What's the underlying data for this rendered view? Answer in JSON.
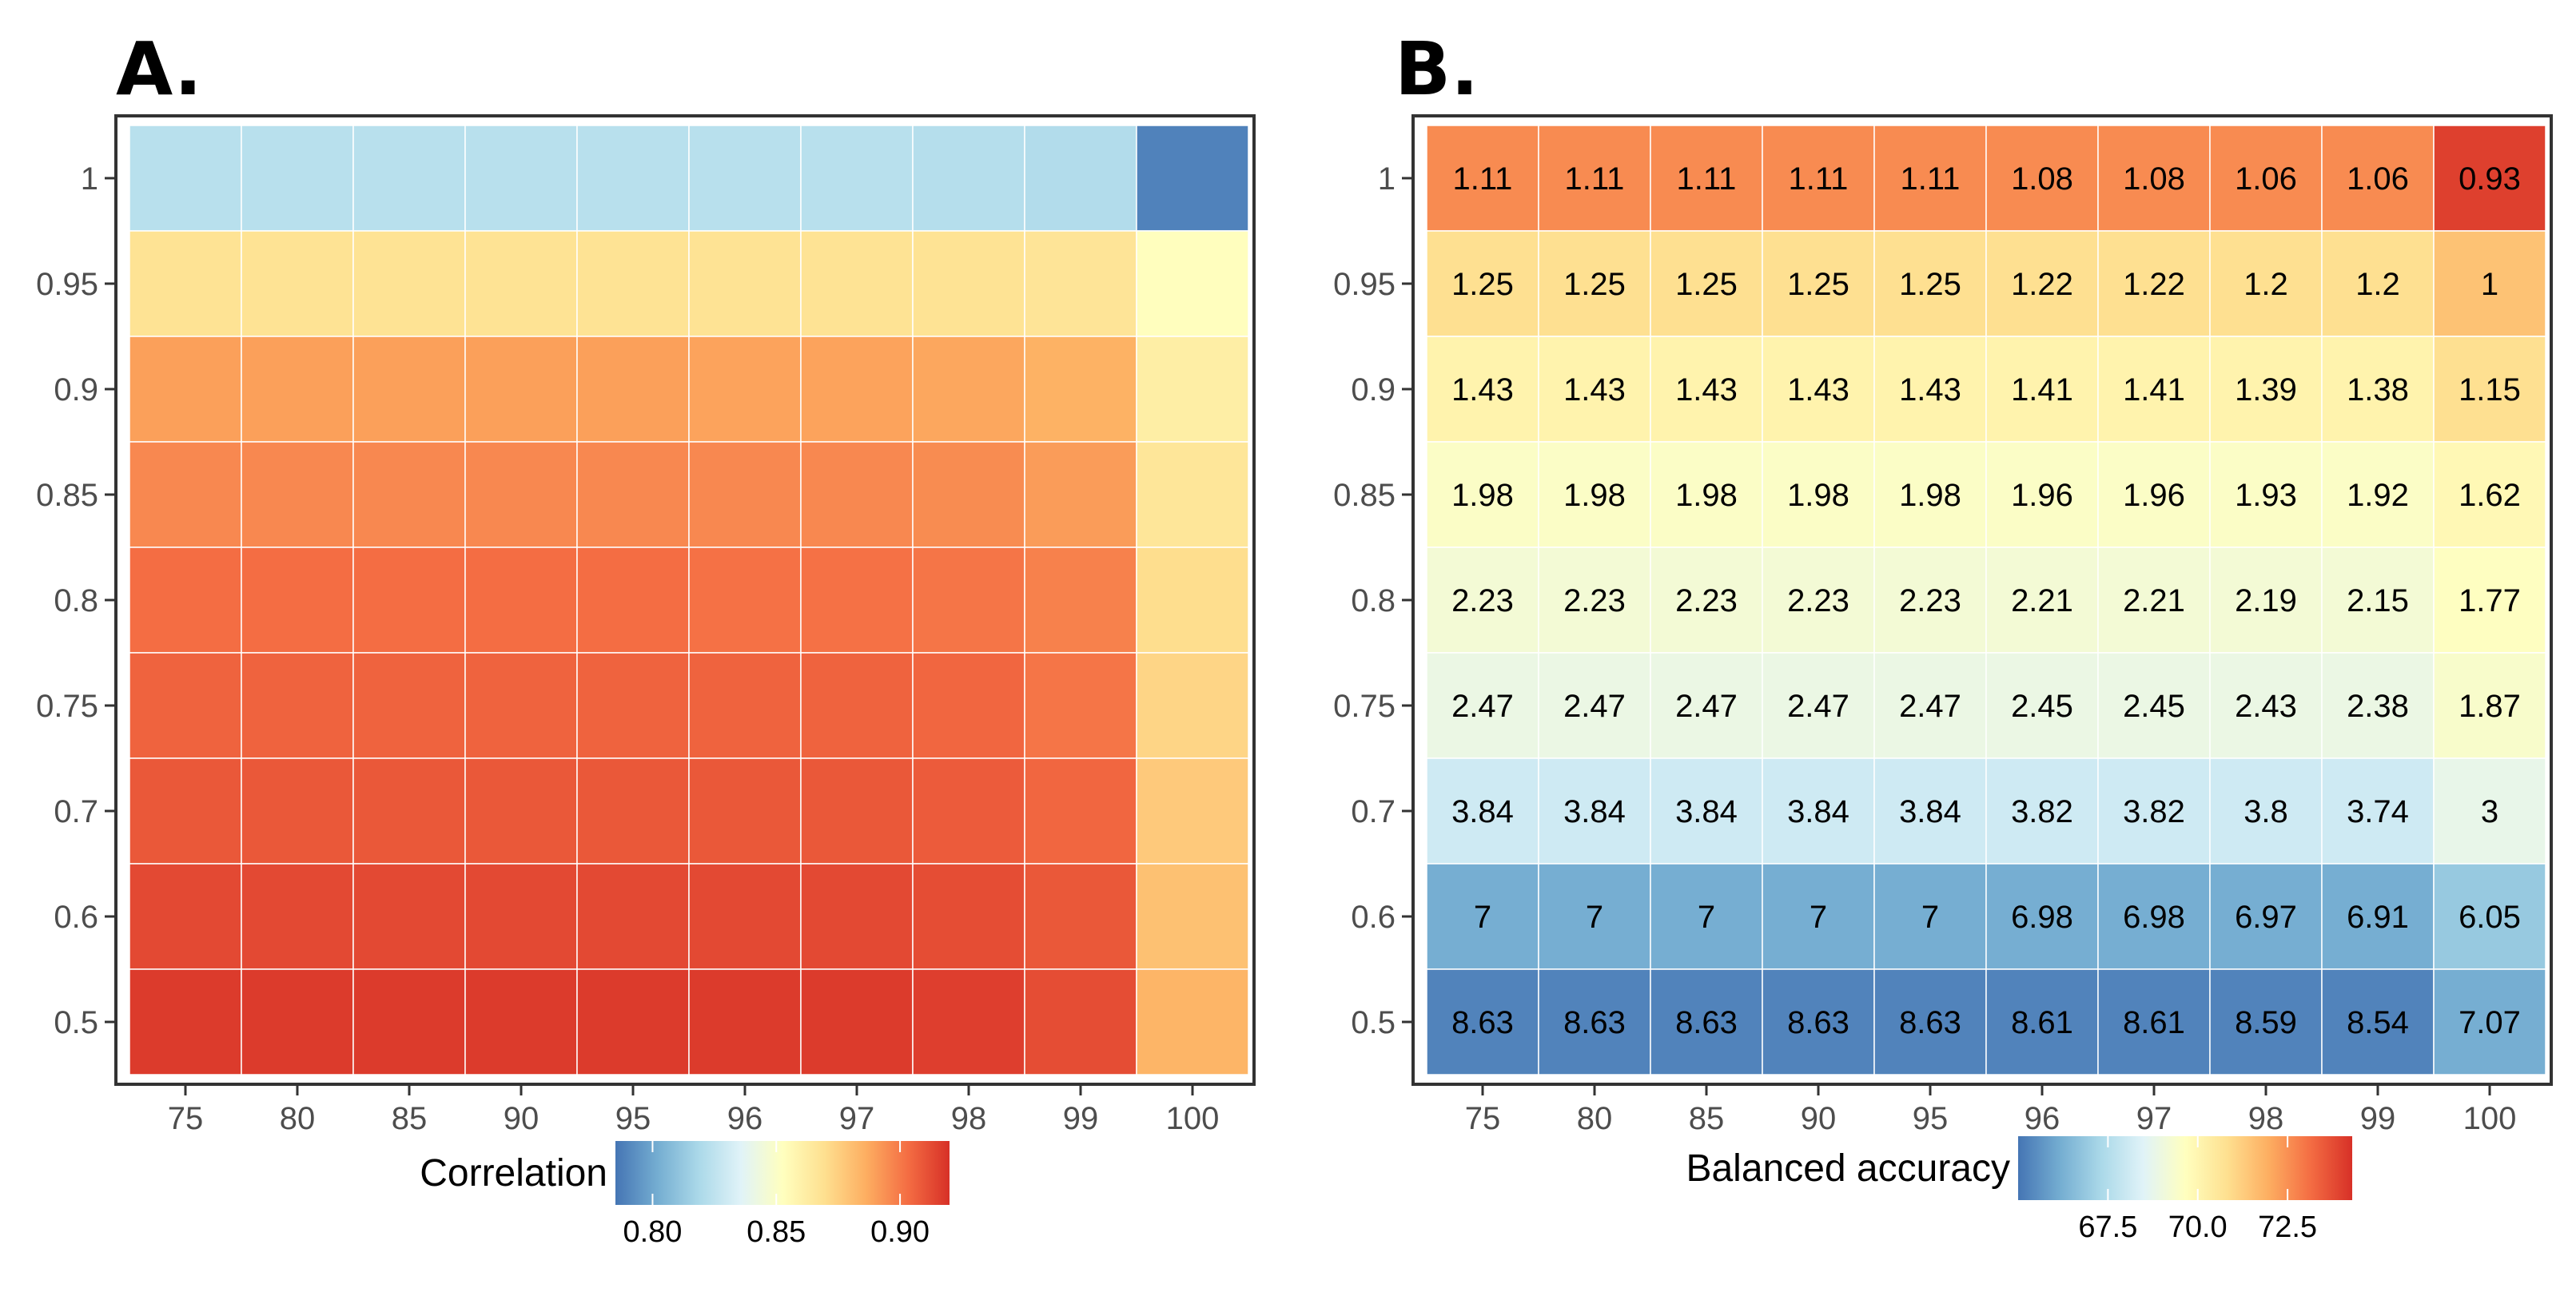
{
  "chart_data": [
    {
      "panel_label": "A.",
      "type": "heatmap",
      "x": [
        "75",
        "80",
        "85",
        "90",
        "95",
        "96",
        "97",
        "98",
        "99",
        "100"
      ],
      "y": [
        "1",
        "0.95",
        "0.9",
        "0.85",
        "0.8",
        "0.75",
        "0.7",
        "0.6",
        "0.5"
      ],
      "values": [
        [
          0.823,
          0.823,
          0.823,
          0.823,
          0.823,
          0.823,
          0.823,
          0.822,
          0.821,
          0.789
        ],
        [
          0.868,
          0.868,
          0.868,
          0.868,
          0.868,
          0.868,
          0.868,
          0.868,
          0.867,
          0.853
        ],
        [
          0.89,
          0.89,
          0.89,
          0.89,
          0.89,
          0.889,
          0.889,
          0.888,
          0.885,
          0.862
        ],
        [
          0.896,
          0.896,
          0.896,
          0.896,
          0.896,
          0.896,
          0.896,
          0.895,
          0.891,
          0.866
        ],
        [
          0.903,
          0.903,
          0.903,
          0.903,
          0.903,
          0.902,
          0.902,
          0.901,
          0.898,
          0.87
        ],
        [
          0.906,
          0.906,
          0.906,
          0.906,
          0.906,
          0.906,
          0.906,
          0.905,
          0.901,
          0.873
        ],
        [
          0.909,
          0.909,
          0.909,
          0.909,
          0.909,
          0.909,
          0.909,
          0.908,
          0.905,
          0.877
        ],
        [
          0.913,
          0.913,
          0.913,
          0.913,
          0.913,
          0.913,
          0.913,
          0.912,
          0.909,
          0.88
        ],
        [
          0.917,
          0.917,
          0.917,
          0.917,
          0.917,
          0.917,
          0.917,
          0.916,
          0.912,
          0.884
        ]
      ],
      "show_cell_labels": false,
      "legend": {
        "title": "Correlation",
        "placement": "bottom",
        "range": [
          0.785,
          0.92
        ],
        "ticks": [
          0.8,
          0.85,
          0.9
        ],
        "tick_labels": [
          "0.80",
          "0.85",
          "0.90"
        ]
      },
      "colorscale": [
        "#4575b4",
        "#74add1",
        "#abd9e9",
        "#e0f3f8",
        "#ffffbf",
        "#fee090",
        "#fdae61",
        "#f46d43",
        "#d73027"
      ]
    },
    {
      "panel_label": "B.",
      "type": "heatmap",
      "x": [
        "75",
        "80",
        "85",
        "90",
        "95",
        "96",
        "97",
        "98",
        "99",
        "100"
      ],
      "y": [
        "1",
        "0.95",
        "0.9",
        "0.85",
        "0.8",
        "0.75",
        "0.7",
        "0.6",
        "0.5"
      ],
      "values": [
        [
          72.6,
          72.6,
          72.6,
          72.6,
          72.6,
          72.6,
          72.6,
          72.6,
          72.6,
          74.0
        ],
        [
          70.8,
          70.8,
          70.8,
          70.8,
          70.8,
          70.8,
          70.8,
          70.8,
          70.8,
          71.5
        ],
        [
          70.1,
          70.1,
          70.1,
          70.1,
          70.1,
          70.1,
          70.1,
          70.1,
          70.1,
          70.8
        ],
        [
          69.5,
          69.5,
          69.5,
          69.5,
          69.5,
          69.5,
          69.5,
          69.5,
          69.5,
          69.9
        ],
        [
          69.2,
          69.2,
          69.2,
          69.2,
          69.2,
          69.2,
          69.2,
          69.2,
          69.2,
          69.6
        ],
        [
          68.9,
          68.9,
          68.9,
          68.9,
          68.9,
          68.9,
          68.9,
          68.9,
          68.9,
          69.4
        ],
        [
          68.1,
          68.1,
          68.1,
          68.1,
          68.1,
          68.1,
          68.1,
          68.1,
          68.1,
          68.8
        ],
        [
          66.2,
          66.2,
          66.2,
          66.2,
          66.2,
          66.2,
          66.2,
          66.2,
          66.2,
          66.9
        ],
        [
          65.3,
          65.3,
          65.3,
          65.3,
          65.3,
          65.3,
          65.3,
          65.3,
          65.3,
          66.2
        ]
      ],
      "cell_labels": [
        [
          "1.11",
          "1.11",
          "1.11",
          "1.11",
          "1.11",
          "1.08",
          "1.08",
          "1.06",
          "1.06",
          "0.93"
        ],
        [
          "1.25",
          "1.25",
          "1.25",
          "1.25",
          "1.25",
          "1.22",
          "1.22",
          "1.2",
          "1.2",
          "1"
        ],
        [
          "1.43",
          "1.43",
          "1.43",
          "1.43",
          "1.43",
          "1.41",
          "1.41",
          "1.39",
          "1.38",
          "1.15"
        ],
        [
          "1.98",
          "1.98",
          "1.98",
          "1.98",
          "1.98",
          "1.96",
          "1.96",
          "1.93",
          "1.92",
          "1.62"
        ],
        [
          "2.23",
          "2.23",
          "2.23",
          "2.23",
          "2.23",
          "2.21",
          "2.21",
          "2.19",
          "2.15",
          "1.77"
        ],
        [
          "2.47",
          "2.47",
          "2.47",
          "2.47",
          "2.47",
          "2.45",
          "2.45",
          "2.43",
          "2.38",
          "1.87"
        ],
        [
          "3.84",
          "3.84",
          "3.84",
          "3.84",
          "3.84",
          "3.82",
          "3.82",
          "3.8",
          "3.74",
          "3"
        ],
        [
          "7",
          "7",
          "7",
          "7",
          "7",
          "6.98",
          "6.98",
          "6.97",
          "6.91",
          "6.05"
        ],
        [
          "8.63",
          "8.63",
          "8.63",
          "8.63",
          "8.63",
          "8.61",
          "8.61",
          "8.59",
          "8.54",
          "7.07"
        ]
      ],
      "show_cell_labels": true,
      "legend": {
        "title": "Balanced accuracy",
        "placement": "bottom",
        "range": [
          65.0,
          74.3
        ],
        "ticks": [
          67.5,
          70.0,
          72.5
        ],
        "tick_labels": [
          "67.5",
          "70.0",
          "72.5"
        ]
      },
      "colorscale": [
        "#4575b4",
        "#74add1",
        "#abd9e9",
        "#e0f3f8",
        "#ffffbf",
        "#fee090",
        "#fdae61",
        "#f46d43",
        "#d73027"
      ]
    }
  ]
}
